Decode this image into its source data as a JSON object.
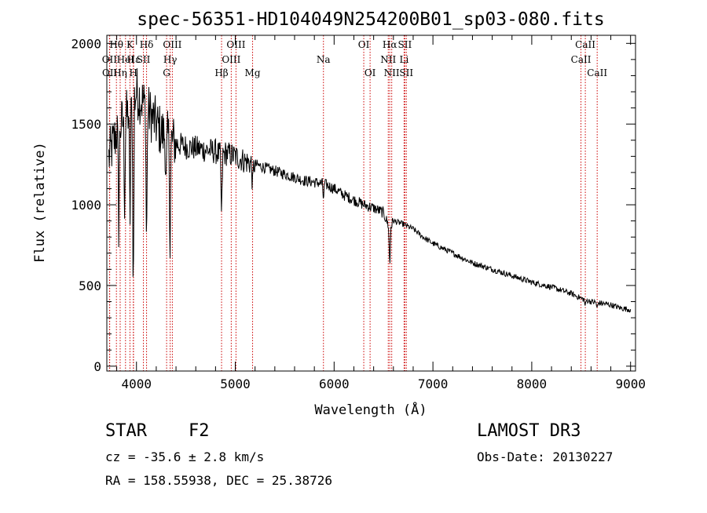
{
  "chart_data": {
    "type": "line",
    "title": "spec-56351-HD104049N254200B01_sp03-080.fits",
    "xlabel": "Wavelength (Å)",
    "ylabel": "Flux (relative)",
    "xlim": [
      3700,
      9050
    ],
    "ylim": [
      -30,
      2050
    ],
    "xticks": [
      4000,
      5000,
      6000,
      7000,
      8000,
      9000
    ],
    "yticks": [
      0,
      500,
      1000,
      1500,
      2000
    ],
    "grid": false,
    "series": [
      {
        "name": "flux",
        "x": [
          3700,
          3750,
          3800,
          3850,
          3900,
          3950,
          4000,
          4050,
          4100,
          4150,
          4200,
          4250,
          4300,
          4350,
          4400,
          4500,
          4600,
          4700,
          4800,
          4860,
          4900,
          5000,
          5100,
          5200,
          5300,
          5400,
          5500,
          5600,
          5700,
          5800,
          5900,
          6000,
          6100,
          6200,
          6300,
          6400,
          6500,
          6563,
          6600,
          6700,
          6800,
          6900,
          7000,
          7200,
          7400,
          7600,
          7800,
          8000,
          8200,
          8400,
          8500,
          8600,
          8700,
          8800,
          8900,
          9000
        ],
        "values": [
          1250,
          1350,
          1450,
          1500,
          1550,
          1600,
          1700,
          1650,
          1600,
          1550,
          1500,
          1450,
          1420,
          1400,
          1380,
          1360,
          1350,
          1340,
          1330,
          1300,
          1320,
          1300,
          1270,
          1250,
          1230,
          1210,
          1190,
          1170,
          1150,
          1140,
          1130,
          1100,
          1060,
          1030,
          1000,
          980,
          950,
          850,
          900,
          880,
          850,
          800,
          760,
          700,
          640,
          600,
          560,
          520,
          490,
          450,
          420,
          400,
          390,
          380,
          360,
          350
        ]
      }
    ],
    "absorption_dips": [
      {
        "x": 3820,
        "depth": 600
      },
      {
        "x": 3880,
        "depth": 500
      },
      {
        "x": 3934,
        "depth": 700
      },
      {
        "x": 3968,
        "depth": 1250
      },
      {
        "x": 4102,
        "depth": 900
      },
      {
        "x": 4300,
        "depth": 300
      },
      {
        "x": 4340,
        "depth": 650
      },
      {
        "x": 4861,
        "depth": 400
      },
      {
        "x": 5175,
        "depth": 150
      },
      {
        "x": 5892,
        "depth": 100
      },
      {
        "x": 6563,
        "depth": 250
      },
      {
        "x": 8542,
        "depth": 40
      },
      {
        "x": 8662,
        "depth": 40
      }
    ],
    "spectral_lines": [
      {
        "label": "Hθ",
        "x": 3797,
        "row": 0
      },
      {
        "label": "OII",
        "x": 3727,
        "row": 1
      },
      {
        "label": "OII",
        "x": 3729,
        "row": 2
      },
      {
        "label": "Hη",
        "x": 3835,
        "row": 2
      },
      {
        "label": "HeI",
        "x": 3889,
        "row": 1
      },
      {
        "label": "K",
        "x": 3934,
        "row": 0
      },
      {
        "label": "Hε",
        "x": 3970,
        "row": 1
      },
      {
        "label": "H",
        "x": 3968,
        "row": 2
      },
      {
        "label": "Hδ",
        "x": 4102,
        "row": 0
      },
      {
        "label": "SII",
        "x": 4070,
        "row": 1
      },
      {
        "label": "OIII",
        "x": 4363,
        "row": 0
      },
      {
        "label": "Hγ",
        "x": 4341,
        "row": 1
      },
      {
        "label": "G",
        "x": 4305,
        "row": 2
      },
      {
        "label": "OIII",
        "x": 5007,
        "row": 0
      },
      {
        "label": "OIII",
        "x": 4959,
        "row": 1
      },
      {
        "label": "Hβ",
        "x": 4861,
        "row": 2
      },
      {
        "label": "Mg",
        "x": 5175,
        "row": 2
      },
      {
        "label": "Na",
        "x": 5892,
        "row": 1
      },
      {
        "label": "OI",
        "x": 6300,
        "row": 0
      },
      {
        "label": "OI",
        "x": 6364,
        "row": 2
      },
      {
        "label": "Hα",
        "x": 6563,
        "row": 0
      },
      {
        "label": "SII",
        "x": 6716,
        "row": 0
      },
      {
        "label": "NII",
        "x": 6548,
        "row": 1
      },
      {
        "label": "Li",
        "x": 6708,
        "row": 1
      },
      {
        "label": "NII",
        "x": 6583,
        "row": 2
      },
      {
        "label": "SII",
        "x": 6731,
        "row": 2
      },
      {
        "label": "CaII",
        "x": 8542,
        "row": 0
      },
      {
        "label": "CaII",
        "x": 8498,
        "row": 1
      },
      {
        "label": "CaII",
        "x": 8662,
        "row": 2
      }
    ]
  },
  "info": {
    "object_class": "STAR",
    "subclass": "F2",
    "survey": "LAMOST DR3",
    "redshift": "cz = -35.6 ± 2.8 km/s",
    "obs_date": "Obs-Date: 20130227",
    "coords": "RA = 158.55938, DEC =  25.38726"
  },
  "colors": {
    "line": "#000000",
    "marker": "#cc0000",
    "background": "#ffffff"
  }
}
